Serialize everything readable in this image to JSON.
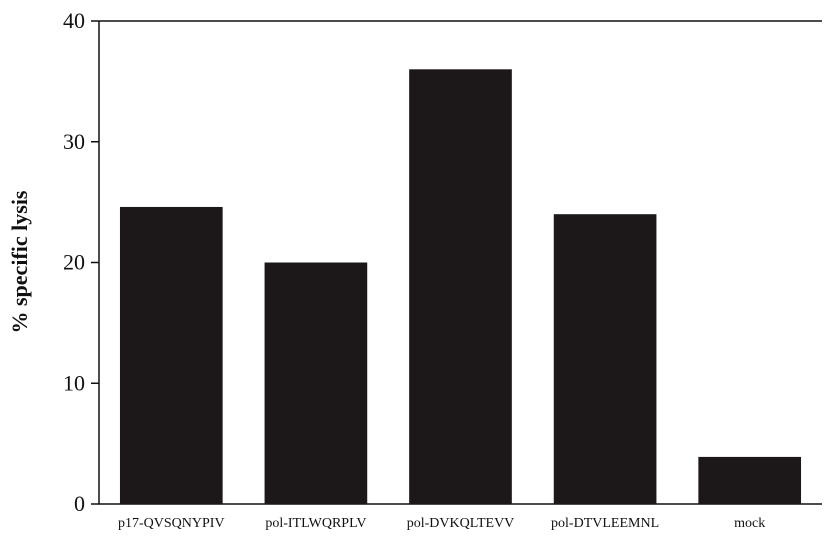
{
  "chart_data": {
    "type": "bar",
    "categories": [
      "p17-QVSQNYPIV",
      "pol-ITLWQRPLV",
      "pol-DVKQLTEVV",
      "pol-DTVLEEMNL",
      "mock"
    ],
    "values": [
      24.6,
      20.0,
      36.0,
      24.0,
      3.9
    ],
    "title": "",
    "xlabel": "",
    "ylabel": "% specific lysis",
    "ylim": [
      0,
      40
    ],
    "yticks": [
      0,
      10,
      20,
      30,
      40
    ],
    "grid": false,
    "bar_color": "#1c1819"
  }
}
